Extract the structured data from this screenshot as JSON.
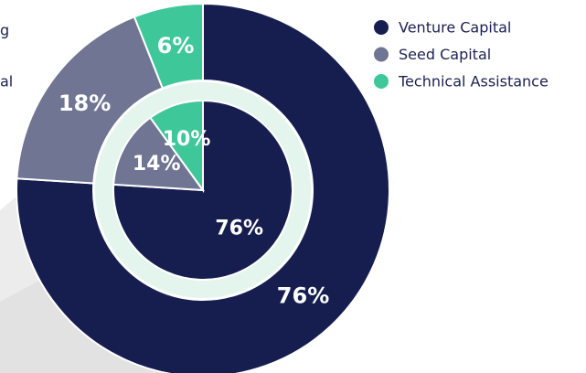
{
  "left_panel_fragments": [
    "g",
    "al"
  ],
  "chart_data": {
    "type": "pie",
    "categories": [
      "Venture Capital",
      "Seed Capital",
      "Technical Assistance"
    ],
    "colors": [
      "#161e50",
      "#6f7592",
      "#3ec89a"
    ],
    "series": [
      {
        "values": [
          76,
          18,
          6
        ],
        "value_labels": [
          "76%",
          "18%",
          "6%"
        ]
      },
      {
        "values": [
          76,
          14,
          10
        ],
        "value_labels": [
          "76%",
          "14%",
          "10%"
        ]
      }
    ]
  }
}
